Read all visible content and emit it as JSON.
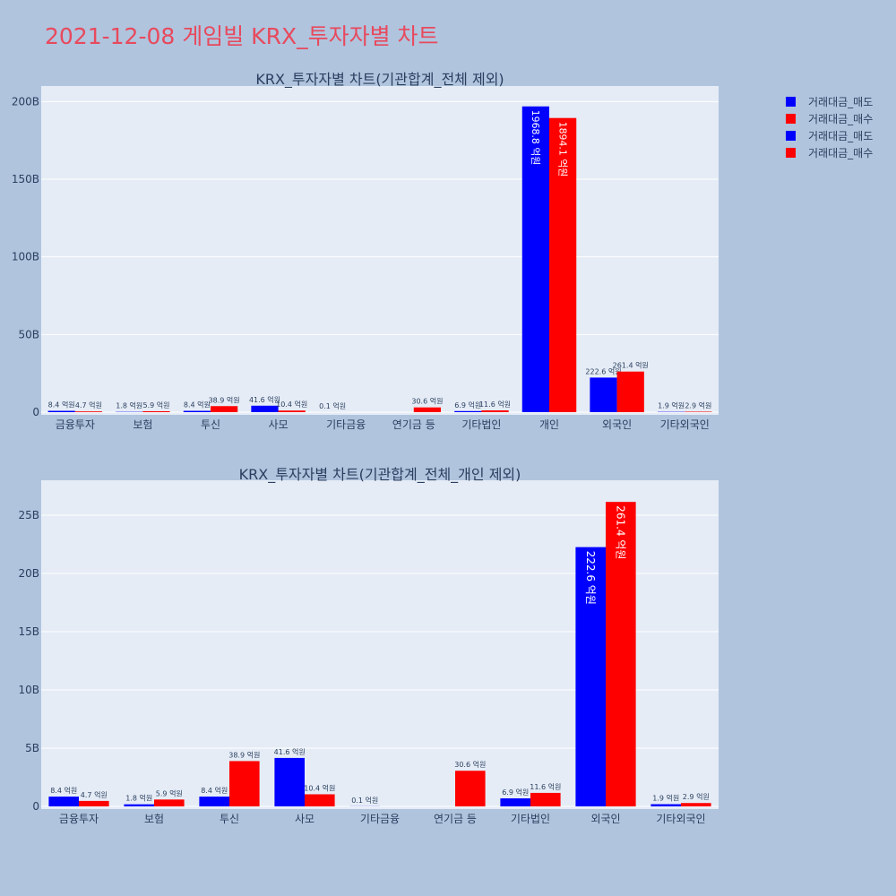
{
  "page_title": "2021-12-08 게임빌 KRX_투자자별 차트",
  "colors": {
    "background": "#B0C4DE",
    "plot_bg": "#E5ECF6",
    "title": "#E8495C",
    "sell": "#0000FF",
    "buy": "#FF0000",
    "text": "#2a3f5f"
  },
  "legend": [
    {
      "label": "거래대금_매도",
      "color": "#0000FF"
    },
    {
      "label": "거래대금_매수",
      "color": "#FF0000"
    },
    {
      "label": "거래대금_매도",
      "color": "#0000FF"
    },
    {
      "label": "거래대금_매수",
      "color": "#FF0000"
    }
  ],
  "chart_data": [
    {
      "type": "bar",
      "title": "KRX_투자자별 차트(기관합계_전체 제외)",
      "categories": [
        "금융투자",
        "보험",
        "투신",
        "사모",
        "기타금융",
        "연기금 등",
        "기타법인",
        "개인",
        "외국인",
        "기타외국인"
      ],
      "ylim": [
        0,
        210000000000
      ],
      "yticks": [
        0,
        50000000000,
        100000000000,
        150000000000,
        200000000000
      ],
      "ytick_labels": [
        "0",
        "50B",
        "100B",
        "150B",
        "200B"
      ],
      "series": [
        {
          "name": "거래대금_매도",
          "color": "#0000FF",
          "values": [
            840000000,
            180000000,
            840000000,
            4160000000,
            10000000,
            0,
            690000000,
            196880000000,
            22260000000,
            190000000
          ],
          "labels": [
            "8.4 억원",
            "1.8 억원",
            "8.4 억원",
            "41.6 억원",
            "0.1 억원",
            "",
            "6.9 억원",
            "1968.8 억원",
            "222.6 억원",
            "1.9 억원"
          ]
        },
        {
          "name": "거래대금_매수",
          "color": "#FF0000",
          "values": [
            470000000,
            590000000,
            3890000000,
            1040000000,
            0,
            3060000000,
            1160000000,
            189410000000,
            26140000000,
            290000000
          ],
          "labels": [
            "4.7 억원",
            "5.9 억원",
            "38.9 억원",
            "10.4 억원",
            "",
            "30.6 억원",
            "11.6 억원",
            "1894.1 억원",
            "261.4 억원",
            "2.9 억원"
          ]
        }
      ]
    },
    {
      "type": "bar",
      "title": "KRX_투자자별 차트(기관합계_전체_개인 제외)",
      "categories": [
        "금융투자",
        "보험",
        "투신",
        "사모",
        "기타금융",
        "연기금 등",
        "기타법인",
        "외국인",
        "기타외국인"
      ],
      "ylim": [
        0,
        28000000000
      ],
      "yticks": [
        0,
        5000000000,
        10000000000,
        15000000000,
        20000000000,
        25000000000
      ],
      "ytick_labels": [
        "0",
        "5B",
        "10B",
        "15B",
        "20B",
        "25B"
      ],
      "series": [
        {
          "name": "거래대금_매도",
          "color": "#0000FF",
          "values": [
            840000000,
            180000000,
            840000000,
            4160000000,
            10000000,
            0,
            690000000,
            22260000000,
            190000000
          ],
          "labels": [
            "8.4 억원",
            "1.8 억원",
            "8.4 억원",
            "41.6 억원",
            "0.1 억원",
            "",
            "6.9 억원",
            "222.6 억원",
            "1.9 억원"
          ]
        },
        {
          "name": "거래대금_매수",
          "color": "#FF0000",
          "values": [
            470000000,
            590000000,
            3890000000,
            1040000000,
            0,
            3060000000,
            1160000000,
            26140000000,
            290000000
          ],
          "labels": [
            "4.7 억원",
            "5.9 억원",
            "38.9 억원",
            "10.4 억원",
            "",
            "30.6 억원",
            "11.6 억원",
            "261.4 억원",
            "2.9 억원"
          ]
        }
      ]
    }
  ]
}
